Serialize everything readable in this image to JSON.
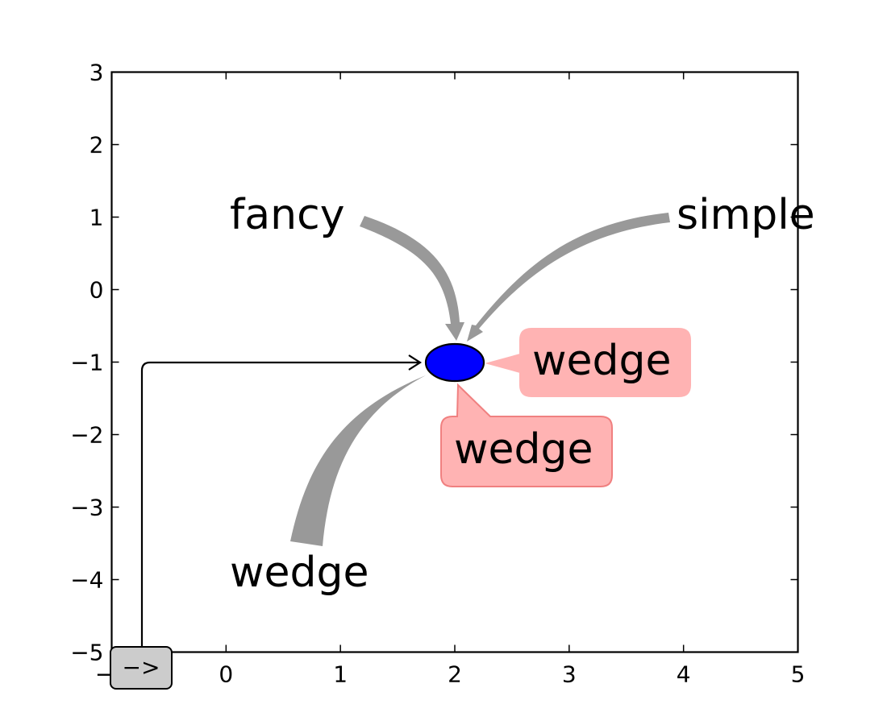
{
  "chart_data": {
    "type": "scatter",
    "title": "",
    "xlabel": "",
    "ylabel": "",
    "xlim": [
      -1,
      5
    ],
    "ylim": [
      -5,
      3
    ],
    "x_ticks": [
      -1,
      0,
      1,
      2,
      3,
      4,
      5
    ],
    "y_ticks": [
      -5,
      -4,
      -3,
      -2,
      -1,
      0,
      1,
      2,
      3
    ],
    "x_tick_labels": [
      "−1",
      "0",
      "1",
      "2",
      "3",
      "4",
      "5"
    ],
    "y_tick_labels": [
      "−5",
      "−4",
      "−3",
      "−2",
      "−1",
      "0",
      "1",
      "2",
      "3"
    ],
    "grid": false,
    "marker": {
      "shape": "ellipse",
      "x": 2,
      "y": -1,
      "width": 0.5,
      "height": 0.5,
      "color": "#0000ff",
      "edgecolor": "#000000"
    },
    "annotations": [
      {
        "id": "fancy",
        "text": "fancy",
        "xy": [
          2,
          -1
        ],
        "xytext": [
          -0.4,
          1.0
        ],
        "arrowstyle": "fancy",
        "color": "#999999"
      },
      {
        "id": "simple",
        "text": "simple",
        "xy": [
          2,
          -1
        ],
        "xytext": [
          3.9,
          1.0
        ],
        "arrowstyle": "simple",
        "color": "#999999"
      },
      {
        "id": "wedge-arrow",
        "text": "wedge",
        "xy": [
          2,
          -1
        ],
        "xytext": [
          0.0,
          -4.0
        ],
        "arrowstyle": "wedge",
        "color": "#999999"
      },
      {
        "id": "wedge-box-right",
        "text": "wedge",
        "xy": [
          2,
          -1
        ],
        "xytext": [
          2.7,
          -1.0
        ],
        "boxstyle": "round,wedge",
        "facecolor": "#ffb3b3",
        "edgecolor": "#ff8080"
      },
      {
        "id": "wedge-box-below",
        "text": "wedge",
        "xy": [
          2,
          -1
        ],
        "xytext": [
          2.0,
          -2.2
        ],
        "boxstyle": "round,wedge",
        "facecolor": "#ffb3b3",
        "edgecolor": "#ff8080"
      },
      {
        "id": "angle-arrow",
        "text": "−>",
        "xy": [
          2,
          -1
        ],
        "xytext": [
          -0.75,
          -5.2
        ],
        "arrowstyle": "->",
        "connectionstyle": "angle",
        "box_facecolor": "#cccccc"
      }
    ]
  }
}
